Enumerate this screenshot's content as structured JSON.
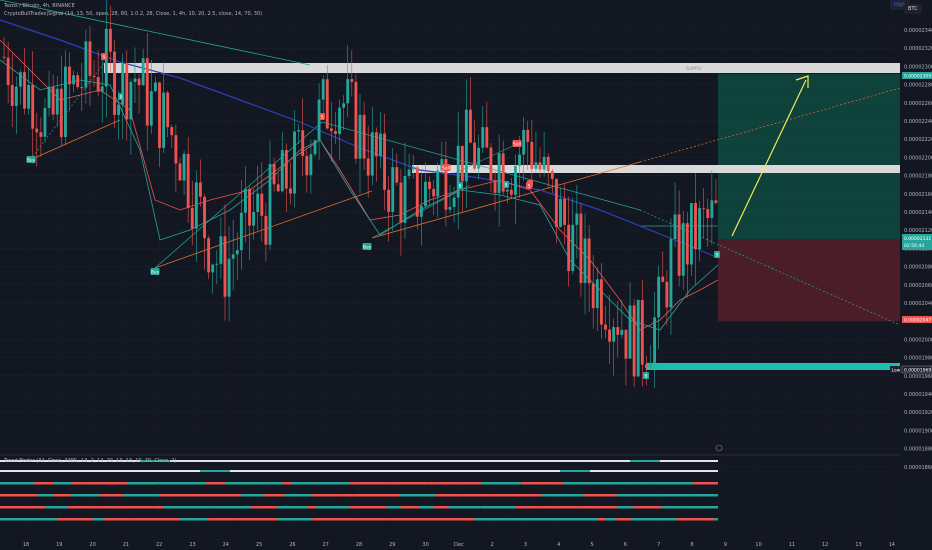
{
  "header": {
    "title": "Tezos / Bitcoin, 4h, BINANCE",
    "indicator": "CryptoBullTrades|Signal (14, 13, 50, open, 28, 80, 1.0.2, 28, Close, 1, 4h, 10, 20, 2.5, close, 14, 70, 30)",
    "sub_indicator": "Trend Finder (34, Close, 34ML, 13, 2, 14, 20, 13, 13, 10, 20, Close, 2)"
  },
  "toolbar": {
    "scale_label": "High",
    "currency_badge": "BTC"
  },
  "colors": {
    "background": "#131722",
    "up": "#26a69a",
    "down": "#ef5350",
    "supply_zone": "#d9d9d9",
    "demand_zone": "#1bbfb0",
    "profit_zone": "#0f5244",
    "loss_zone": "#5a1f2b",
    "arrow": "#f6e85b",
    "trendline_orange": "#e0712c",
    "trendline_teal": "#22ab94",
    "ma_blue": "#2f3fb8"
  },
  "price_labels": {
    "top_zone": "0.00002309",
    "current": "0.00002131",
    "countdown": "02:56:44",
    "stop": "0.00002047",
    "low_value": "0.00001969",
    "low_tag": "Low"
  },
  "zone_text": {
    "supply_top": "SUPPLY"
  },
  "x_labels": [
    "18",
    "19",
    "20",
    "21",
    "22",
    "23",
    "24",
    "25",
    "26",
    "27",
    "28",
    "29",
    "30",
    "Dec",
    "2",
    "3",
    "4",
    "5",
    "6",
    "7",
    "8",
    "9",
    "10",
    "11",
    "12",
    "13",
    "14"
  ],
  "y_labels": [
    "0.00002340",
    "0.00002320",
    "0.00002300",
    "0.00002280",
    "0.00002260",
    "0.00002240",
    "0.00002220",
    "0.00002200",
    "0.00002180",
    "0.00002160",
    "0.00002140",
    "0.00002120",
    "0.00002100",
    "0.00002080",
    "0.00002060",
    "0.00002040",
    "0.00002020",
    "0.00002000",
    "0.00001980",
    "0.00001960",
    "0.00001940",
    "0.00001920",
    "0.00001900",
    "0.00001880",
    "0.00001860"
  ],
  "osc_labels": [
    "80.00",
    "60.00",
    "40.00",
    "20.00"
  ],
  "signals": [
    {
      "label": "Buy",
      "type": "buy"
    },
    {
      "label": "S",
      "type": "sell"
    },
    {
      "label": "B",
      "type": "buy"
    },
    {
      "label": "S",
      "type": "sell"
    },
    {
      "label": "Buy",
      "type": "buy"
    },
    {
      "label": "Sell",
      "type": "sell"
    },
    {
      "label": "Buy",
      "type": "buy"
    },
    {
      "label": "Sell",
      "type": "sell"
    },
    {
      "label": "B",
      "type": "buy"
    },
    {
      "label": "S",
      "type": "sell"
    },
    {
      "label": "B",
      "type": "buy"
    },
    {
      "label": "S",
      "type": "sell"
    },
    {
      "label": "B",
      "type": "buy"
    },
    {
      "label": "B",
      "type": "buy"
    }
  ],
  "chart_data": {
    "type": "candlestick",
    "symbol": "Tezos / Bitcoin",
    "timeframe": "4h",
    "exchange": "BINANCE",
    "ylim": [
      1.85e-05,
      2.35e-05
    ],
    "x_ticks": [
      "18",
      "19",
      "20",
      "21",
      "22",
      "23",
      "24",
      "25",
      "26",
      "27",
      "28",
      "29",
      "30",
      "Dec",
      "2",
      "3",
      "4",
      "5",
      "6",
      "7",
      "8",
      "9",
      "10",
      "11",
      "12",
      "13",
      "14"
    ],
    "ohlc_close_approx": [
      2.31e-05,
      2.28e-05,
      2.27e-05,
      2.23e-05,
      2.26e-05,
      2.28e-05,
      2.29e-05,
      2.3e-05,
      2.28e-05,
      2.29e-05,
      2.26e-05,
      2.24e-05,
      2.21e-05,
      2.16e-05,
      2.11e-05,
      2.07e-05,
      2.1e-05,
      2.13e-05,
      2.14e-05,
      2.16e-05,
      2.19e-05,
      2.22e-05,
      2.25e-05,
      2.27e-05,
      2.24e-05,
      2.21e-05,
      2.18e-05,
      2.16e-05,
      2.15e-05,
      2.16e-05,
      2.18e-05,
      2.19e-05,
      2.21e-05,
      2.19e-05,
      2.2e-05,
      2.19e-05,
      2.22e-05,
      2.18e-05,
      2.14e-05,
      2.11e-05,
      2.07e-05,
      2.05e-05,
      2.03e-05,
      2e-05,
      1.99e-05,
      2.02e-05,
      2.09e-05,
      2.1e-05,
      2.12e-05,
      2.13e-05
    ],
    "zones": [
      {
        "name": "supply-top",
        "from": 2.3e-05,
        "to": 2.31e-05
      },
      {
        "name": "supply-mid",
        "from": 2.2e-05,
        "to": 2.21e-05
      },
      {
        "name": "demand-low",
        "from": 1.97e-05,
        "to": 1.98e-05
      }
    ],
    "position": {
      "entry": 2.13e-05,
      "target": 2.31e-05,
      "stop": 2.05e-05
    }
  }
}
